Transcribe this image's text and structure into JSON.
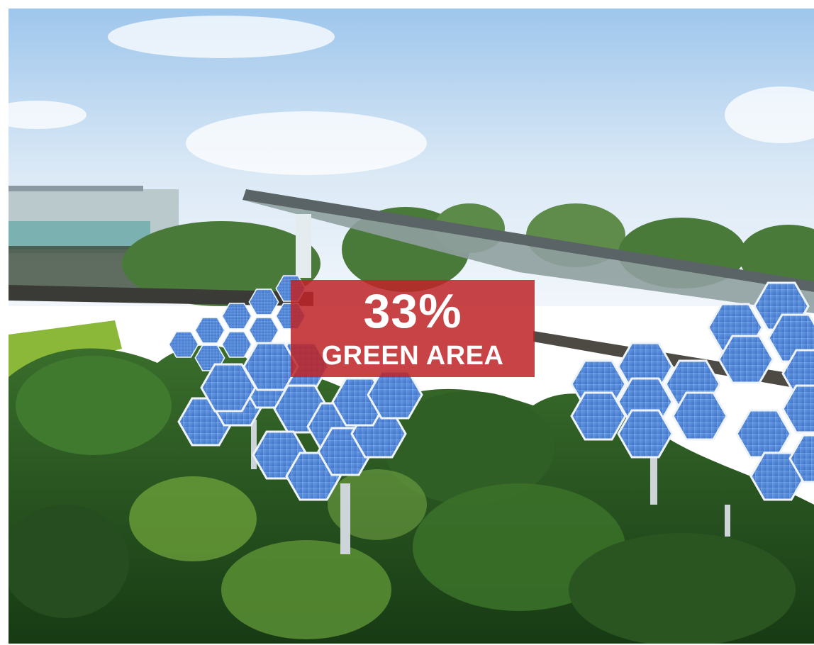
{
  "overlay": {
    "value": "33%",
    "label": "GREEN AREA"
  },
  "colors": {
    "overlay_background": "#be2428",
    "sky_top": "#9fc8ee",
    "sky_bottom": "#eef5fb",
    "foliage_dark": "#1f4a1c",
    "foliage_mid": "#3f7a2e",
    "foliage_light": "#7fb24a",
    "solar_panel": "#4f86d8",
    "panel_border": "#e8eef7"
  },
  "scene": {
    "subject": "hexagonal-solar-panel-trees",
    "environment": "forest-canopy"
  }
}
